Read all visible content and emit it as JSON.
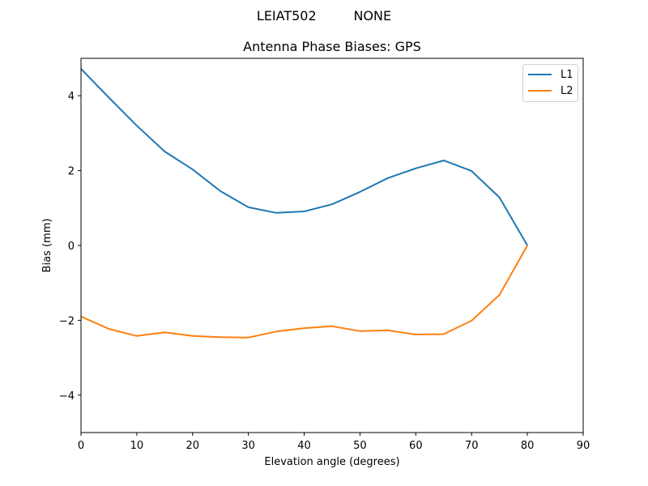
{
  "figure": {
    "suptitle": "LEIAT502         NONE",
    "title": "Antenna Phase Biases: GPS"
  },
  "chart_data": {
    "type": "line",
    "title": "Antenna Phase Biases: GPS",
    "suptitle": "LEIAT502         NONE",
    "xlabel": "Elevation angle (degrees)",
    "ylabel": "Bias (mm)",
    "xlim": [
      0,
      90
    ],
    "ylim": [
      -5,
      5
    ],
    "xticks": [
      0,
      10,
      20,
      30,
      40,
      50,
      60,
      70,
      80,
      90
    ],
    "yticks": [
      -4,
      -2,
      0,
      2,
      4
    ],
    "grid": false,
    "legend_position": "upper right",
    "x": [
      0,
      5,
      10,
      15,
      20,
      25,
      30,
      35,
      40,
      45,
      50,
      55,
      60,
      65,
      70,
      75,
      80
    ],
    "series": [
      {
        "name": "L1",
        "color": "#1f77b4",
        "values": [
          4.72,
          3.95,
          3.2,
          2.51,
          2.03,
          1.45,
          1.02,
          0.87,
          0.91,
          1.1,
          1.43,
          1.8,
          2.06,
          2.27,
          1.99,
          1.28,
          0.0
        ]
      },
      {
        "name": "L2",
        "color": "#ff7f0e",
        "values": [
          -1.9,
          -2.23,
          -2.42,
          -2.32,
          -2.42,
          -2.45,
          -2.46,
          -2.3,
          -2.21,
          -2.16,
          -2.29,
          -2.27,
          -2.38,
          -2.37,
          -2.01,
          -1.32,
          0.0
        ]
      }
    ]
  },
  "legend": {
    "items": [
      {
        "label": "L1",
        "color": "#1f77b4"
      },
      {
        "label": "L2",
        "color": "#ff7f0e"
      }
    ]
  }
}
